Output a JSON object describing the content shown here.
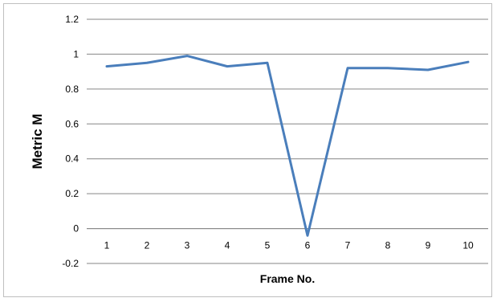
{
  "chart_data": {
    "type": "line",
    "title": "",
    "xlabel": "Frame No.",
    "ylabel": "Metric M",
    "categories": [
      "1",
      "2",
      "3",
      "4",
      "5",
      "6",
      "7",
      "8",
      "9",
      "10"
    ],
    "series": [
      {
        "values": [
          0.93,
          0.95,
          0.99,
          0.93,
          0.95,
          -0.04,
          0.92,
          0.92,
          0.91,
          0.955
        ],
        "color": "#4a7ebb"
      }
    ],
    "ylim": [
      -0.2,
      1.2
    ],
    "yticks": [
      -0.2,
      0,
      0.2,
      0.4,
      0.6,
      0.8,
      1,
      1.2
    ],
    "ytick_labels": [
      "-0.2",
      "0",
      "0.2",
      "0.4",
      "0.6",
      "0.8",
      "1",
      "1.2"
    ],
    "grid": true,
    "legend": "none"
  }
}
